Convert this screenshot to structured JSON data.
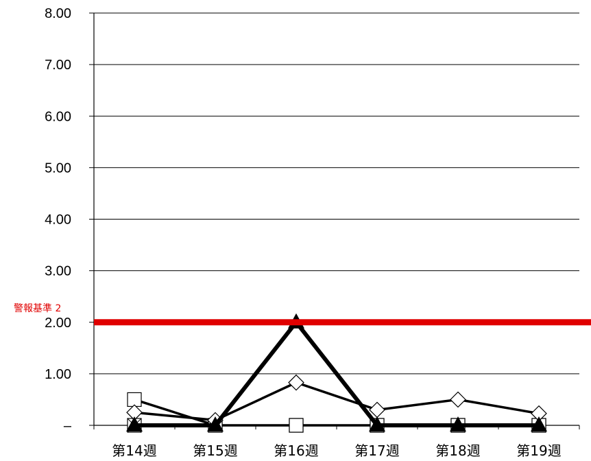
{
  "chart_data": {
    "type": "line",
    "categories": [
      "第14週",
      "第15週",
      "第16週",
      "第17週",
      "第18週",
      "第19週"
    ],
    "y_ticks": [
      {
        "value": 0,
        "label": "–"
      },
      {
        "value": 1,
        "label": "1.00"
      },
      {
        "value": 2,
        "label": "2.00"
      },
      {
        "value": 3,
        "label": "3.00"
      },
      {
        "value": 4,
        "label": "4.00"
      },
      {
        "value": 5,
        "label": "5.00"
      },
      {
        "value": 6,
        "label": "6.00"
      },
      {
        "value": 7,
        "label": "7.00"
      },
      {
        "value": 8,
        "label": "8.00"
      }
    ],
    "ylim": [
      0,
      8
    ],
    "grid": "horizontal",
    "reference_line": {
      "value": 2,
      "label": "警報基準 2",
      "color": "#e00000"
    },
    "series": [
      {
        "marker": "triangle",
        "stroke": "heavy",
        "values": [
          0,
          0,
          2,
          0,
          0,
          0
        ]
      },
      {
        "marker": "diamond",
        "stroke": "medium",
        "values": [
          0.25,
          0.1,
          0.83,
          0.3,
          0.5,
          0.23
        ]
      },
      {
        "marker": "square",
        "stroke": "medium",
        "values": [
          0.5,
          0,
          0,
          0,
          0,
          0
        ]
      },
      {
        "marker": "square-x",
        "stroke": "thin",
        "values": [
          0,
          0,
          0,
          0,
          0,
          0
        ]
      }
    ]
  }
}
